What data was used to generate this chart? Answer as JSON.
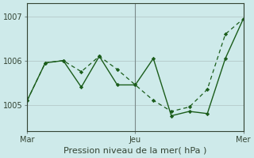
{
  "xlabel": "Pression niveau de la mer( hPa )",
  "background_color": "#ceeaea",
  "grid_color": "#b8cece",
  "line_color": "#1a5c1a",
  "x_tick_positions": [
    0,
    12,
    24
  ],
  "x_tick_labels": [
    "Mar",
    "Jeu",
    "Mer"
  ],
  "ylim": [
    1004.4,
    1007.3
  ],
  "yticks": [
    1005,
    1006,
    1007
  ],
  "xlim": [
    0,
    24
  ],
  "zigzag_x": [
    0,
    2,
    4,
    6,
    8,
    10,
    12,
    14,
    16,
    18,
    20,
    22,
    24
  ],
  "zigzag_y": [
    1005.1,
    1005.95,
    1006.0,
    1005.4,
    1006.1,
    1005.45,
    1005.45,
    1006.05,
    1004.75,
    1004.85,
    1004.8,
    1006.05,
    1006.95
  ],
  "trend_x": [
    0,
    2,
    4,
    6,
    8,
    10,
    12,
    14,
    16,
    18,
    20,
    22,
    24
  ],
  "trend_y": [
    1005.1,
    1005.95,
    1006.0,
    1005.75,
    1006.1,
    1005.8,
    1005.45,
    1005.1,
    1004.85,
    1004.95,
    1005.35,
    1006.6,
    1006.95
  ]
}
